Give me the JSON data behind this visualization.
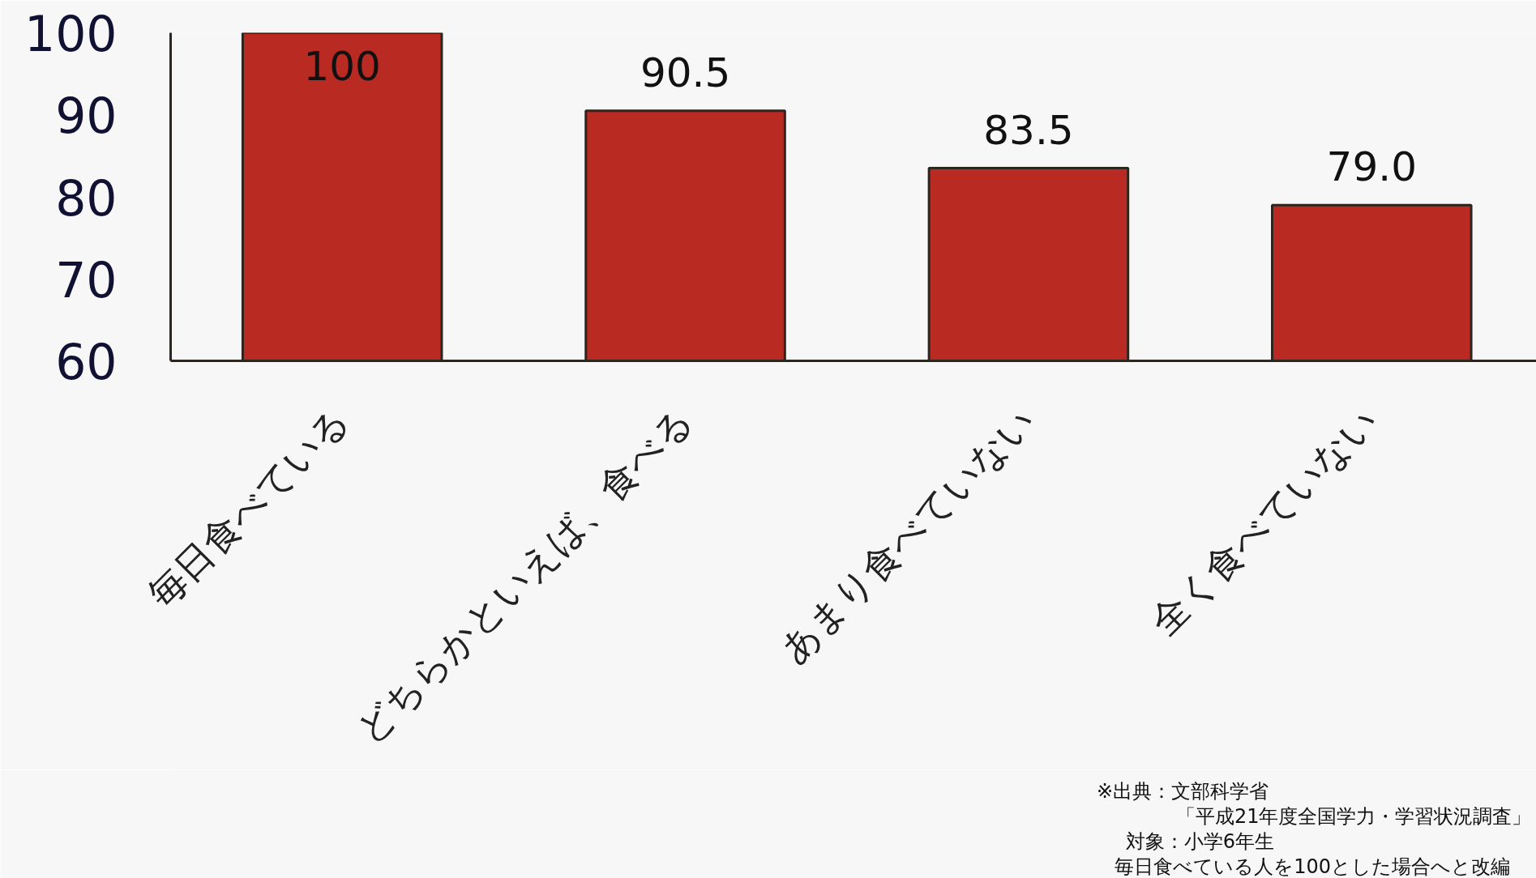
{
  "chart_data": {
    "type": "bar",
    "categories": [
      "毎日食べている",
      "どちらかといえば、食べる",
      "あまり食べていない",
      "全く食べていない"
    ],
    "values": [
      100,
      90.5,
      83.5,
      79.0
    ],
    "value_labels": [
      "100",
      "90.5",
      "83.5",
      "79.0"
    ],
    "color": "#b92b22",
    "ylim": [
      60,
      100
    ],
    "yticks": [
      60,
      70,
      80,
      90,
      100
    ],
    "grid": false,
    "annotations": [
      "※出典：文部科学省",
      "「平成21年度全国学力・学習状況調査」",
      "対象：小学6年生",
      "毎日食べている人を100とした場合へと改編"
    ]
  }
}
